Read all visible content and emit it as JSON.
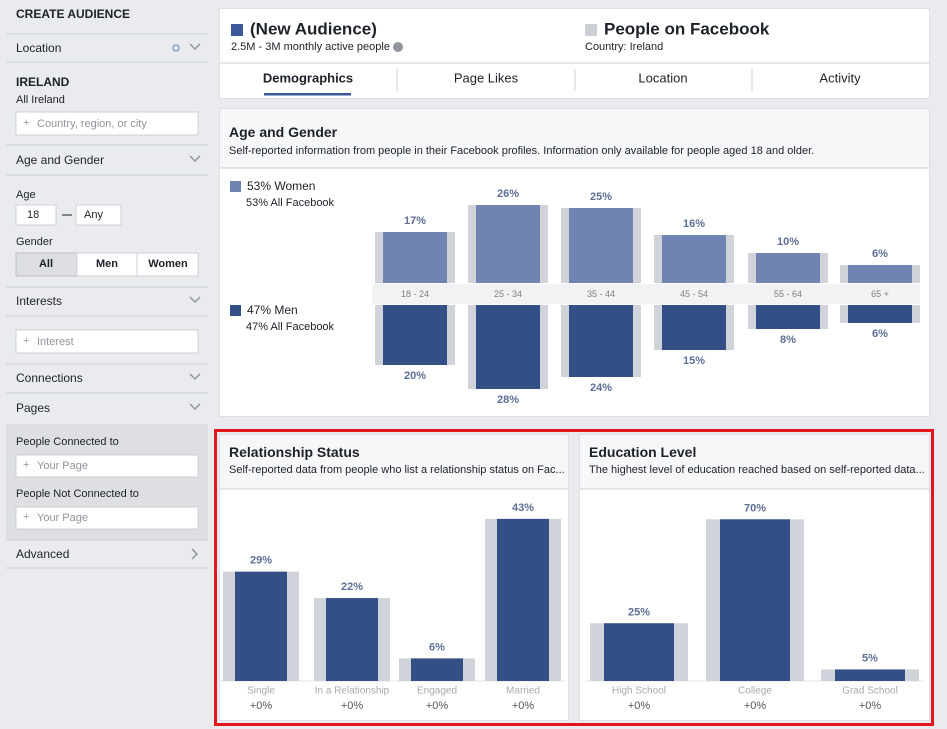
{
  "sidebar": {
    "title": "CREATE AUDIENCE",
    "location": {
      "label": "Location",
      "country": "IRELAND",
      "region": "All Ireland",
      "placeholder": "Country, region, or city"
    },
    "age_gender": {
      "label": "Age and Gender",
      "age_label": "Age",
      "age_min": "18",
      "age_max": "Any",
      "gender_label": "Gender",
      "gender_options": [
        "All",
        "Men",
        "Women"
      ]
    },
    "interests": {
      "label": "Interests",
      "placeholder": "Interest"
    },
    "connections": "Connections",
    "pages": {
      "label": "Pages",
      "connected_label": "People Connected to",
      "connected_placeholder": "Your Page",
      "not_connected_label": "People Not Connected to",
      "not_connected_placeholder": "Your Page"
    },
    "advanced": "Advanced"
  },
  "header": {
    "audience": "(New Audience)",
    "audience_size": "2.5M - 3M monthly active people",
    "comparison": "People on Facebook",
    "comparison_country": "Country: Ireland",
    "tabs": [
      "Demographics",
      "Page Likes",
      "Location",
      "Activity"
    ]
  },
  "age_gender": {
    "title": "Age and Gender",
    "description": "Self-reported information from people in their Facebook profiles. Information only available for people aged 18 and older.",
    "categories": [
      "18 - 24",
      "25 - 34",
      "35 - 44",
      "45 - 54",
      "55 - 64",
      "65 +"
    ],
    "series": [
      {
        "name": "53% Women",
        "baseline": "53% All Facebook",
        "color": "#6f84b2",
        "values": [
          17,
          26,
          25,
          16,
          10,
          6
        ],
        "value_labels": [
          "17%",
          "26%",
          "25%",
          "16%",
          "10%",
          "6%"
        ]
      },
      {
        "name": "47% Men",
        "baseline": "47% All Facebook",
        "color": "#344e86",
        "values": [
          20,
          28,
          24,
          15,
          8,
          6
        ],
        "value_labels": [
          "20%",
          "28%",
          "24%",
          "15%",
          "8%",
          "6%"
        ]
      }
    ]
  },
  "relationship": {
    "title": "Relationship Status",
    "description": "Self-reported data from people who list a relationship status on Fac...",
    "categories": [
      "Single",
      "In a Relationship",
      "Engaged",
      "Married"
    ],
    "values": [
      29,
      22,
      6,
      43
    ],
    "value_labels": [
      "29%",
      "22%",
      "6%",
      "43%"
    ],
    "changes": [
      "+0%",
      "+0%",
      "+0%",
      "+0%"
    ],
    "color": "#344e86"
  },
  "education": {
    "title": "Education Level",
    "description": "The highest level of education reached based on self-reported data...",
    "categories": [
      "High School",
      "College",
      "Grad School"
    ],
    "values": [
      25,
      70,
      5
    ],
    "value_labels": [
      "25%",
      "70%",
      "5%"
    ],
    "changes": [
      "+0%",
      "+0%",
      "+0%"
    ],
    "color": "#344e86"
  }
}
